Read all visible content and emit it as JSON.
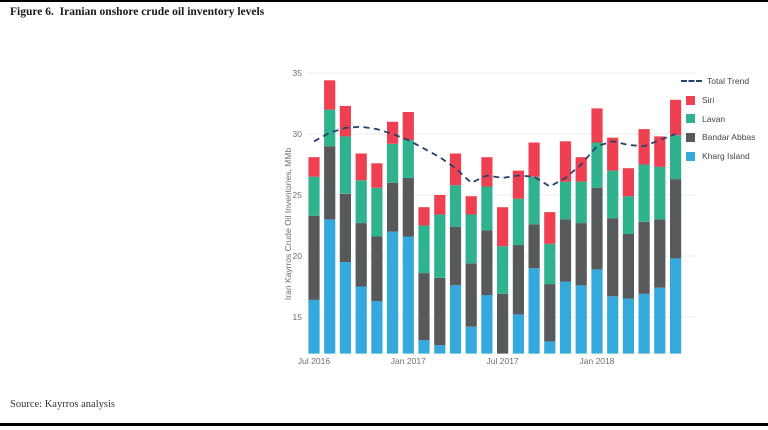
{
  "page": {
    "title": "Figure 6.  Iranian onshore crude oil inventory levels",
    "source": "Source: Kayrros analysis"
  },
  "colors": {
    "grid": "#ececec",
    "axis_text": "#6e6e6e",
    "rule": "#000000"
  },
  "chart_data": {
    "type": "bar",
    "stacked": true,
    "title": "",
    "xlabel": "",
    "ylabel": "Iran Kayrros Crude Oil Inventories, MMb",
    "ylim": [
      12,
      35.5
    ],
    "yticks": [
      15,
      20,
      25,
      30,
      35
    ],
    "grid": true,
    "legend_position": "right",
    "categories": [
      "Jul 2016",
      "Aug 2016",
      "Sep 2016",
      "Oct 2016",
      "Nov 2016",
      "Dec 2016",
      "Jan 2017",
      "Feb 2017",
      "Mar 2017",
      "Apr 2017",
      "May 2017",
      "Jun 2017",
      "Jul 2017",
      "Aug 2017",
      "Sep 2017",
      "Oct 2017",
      "Nov 2017",
      "Dec 2017",
      "Jan 2018",
      "Feb 2018",
      "Mar 2018",
      "Apr 2018",
      "May 2018",
      "Jun 2018"
    ],
    "xticks": [
      {
        "month_index": 0,
        "label": "Jul 2016"
      },
      {
        "month_index": 6,
        "label": "Jan 2017"
      },
      {
        "month_index": 12,
        "label": "Jul 2017"
      },
      {
        "month_index": 18,
        "label": "Jan 2018"
      }
    ],
    "series_note": "cum_top = cumulative stack top in MMb; stack order bottom-to-top: Kharg Island, Bandar Abbas, Lavan, Siri; bars clipped at axis minimum 12",
    "series": [
      {
        "name": "Kharg Island",
        "color": "#36a9dc",
        "cum_top": [
          16.4,
          23.0,
          19.5,
          17.5,
          16.3,
          22.0,
          21.6,
          13.1,
          12.7,
          17.6,
          14.2,
          16.8,
          12.0,
          15.2,
          19.0,
          13.0,
          17.9,
          17.6,
          18.9,
          16.7,
          16.5,
          16.9,
          17.4,
          19.8
        ]
      },
      {
        "name": "Bandar Abbas",
        "color": "#58595b",
        "cum_top": [
          23.3,
          29.0,
          25.1,
          22.7,
          21.6,
          26.0,
          26.4,
          18.6,
          18.2,
          22.4,
          19.4,
          22.1,
          16.9,
          20.9,
          22.6,
          17.7,
          23.0,
          22.7,
          25.6,
          23.1,
          21.8,
          22.8,
          23.0,
          26.3
        ]
      },
      {
        "name": "Lavan",
        "color": "#30b28e",
        "cum_top": [
          26.5,
          32.0,
          29.8,
          26.2,
          25.6,
          29.2,
          29.5,
          22.5,
          23.4,
          25.8,
          23.4,
          25.7,
          20.8,
          24.7,
          26.5,
          21.0,
          26.1,
          26.1,
          29.3,
          27.0,
          24.9,
          27.5,
          27.3,
          29.9
        ]
      },
      {
        "name": "Siri",
        "color": "#ee4050",
        "cum_top": [
          28.1,
          34.4,
          32.3,
          28.4,
          27.6,
          31.0,
          31.8,
          24.0,
          25.0,
          28.4,
          24.9,
          28.1,
          24.0,
          27.0,
          29.3,
          23.6,
          29.4,
          28.1,
          32.1,
          29.7,
          27.2,
          30.4,
          29.8,
          32.8
        ]
      }
    ],
    "trend": {
      "name": "Total Trend",
      "color": "#27426f",
      "values": [
        29.4,
        30.1,
        30.5,
        30.6,
        30.4,
        30.0,
        29.5,
        28.8,
        28.1,
        27.2,
        26.0,
        26.6,
        26.4,
        26.6,
        26.5,
        25.7,
        26.4,
        27.5,
        29.0,
        29.4,
        29.1,
        29.0,
        29.5,
        30.0
      ]
    }
  }
}
